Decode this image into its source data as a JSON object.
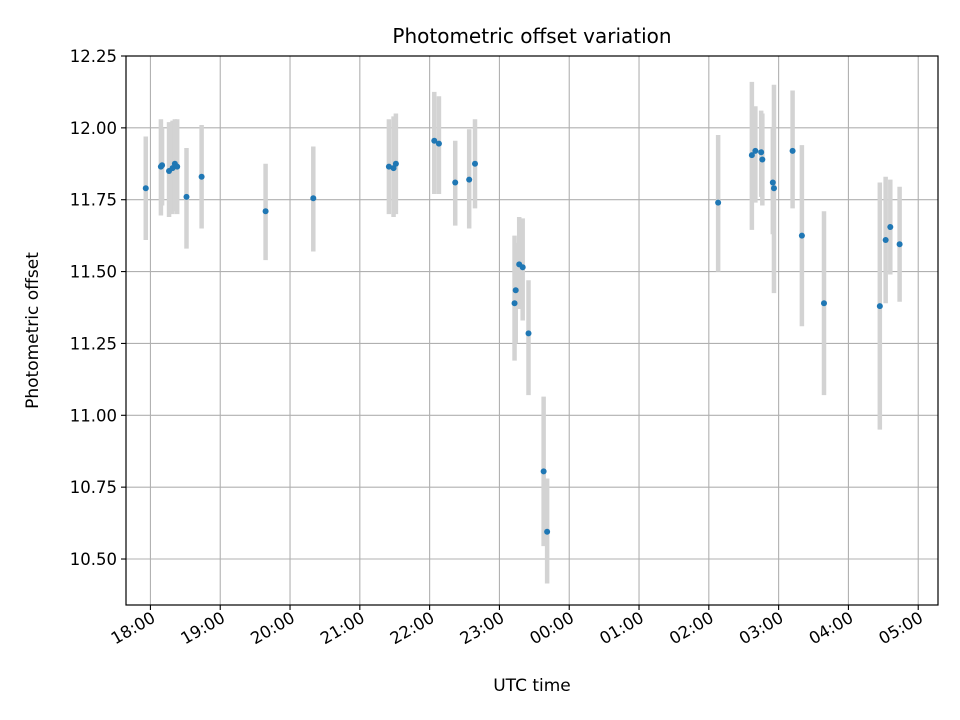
{
  "chart_data": {
    "type": "scatter",
    "title": "Photometric offset variation",
    "xlabel": "UTC time",
    "ylabel": "Photometric offset",
    "x_unit": "UTC clock time",
    "xlim": [
      "17:39",
      "05:17"
    ],
    "ylim": [
      10.34,
      12.25
    ],
    "xticks": [
      "18:00",
      "19:00",
      "20:00",
      "21:00",
      "22:00",
      "23:00",
      "00:00",
      "01:00",
      "02:00",
      "03:00",
      "04:00",
      "05:00"
    ],
    "yticks": [
      "10.50",
      "10.75",
      "11.00",
      "11.25",
      "11.50",
      "11.75",
      "12.00",
      "12.25"
    ],
    "grid": true,
    "legend": "none",
    "colors": {
      "point": "#1f77b4",
      "errorbar": "#d3d3d3",
      "grid": "#b0b0b0"
    },
    "series": [
      {
        "points": [
          {
            "x": "17:56",
            "y": 11.79,
            "y_low": 11.61,
            "y_high": 11.97
          },
          {
            "x": "18:09",
            "y": 11.865,
            "y_low": 11.695,
            "y_high": 12.03
          },
          {
            "x": "18:10",
            "y": 11.87,
            "y_low": 11.73,
            "y_high": 12.0
          },
          {
            "x": "18:16",
            "y": 11.85,
            "y_low": 11.69,
            "y_high": 12.02
          },
          {
            "x": "18:19",
            "y": 11.86,
            "y_low": 11.7,
            "y_high": 12.025
          },
          {
            "x": "18:21",
            "y": 11.875,
            "y_low": 11.71,
            "y_high": 12.03
          },
          {
            "x": "18:23",
            "y": 11.865,
            "y_low": 11.7,
            "y_high": 12.03
          },
          {
            "x": "18:31",
            "y": 11.76,
            "y_low": 11.58,
            "y_high": 11.93
          },
          {
            "x": "18:44",
            "y": 11.83,
            "y_low": 11.65,
            "y_high": 12.01
          },
          {
            "x": "19:39",
            "y": 11.71,
            "y_low": 11.54,
            "y_high": 11.875
          },
          {
            "x": "20:20",
            "y": 11.755,
            "y_low": 11.57,
            "y_high": 11.935
          },
          {
            "x": "21:25",
            "y": 11.865,
            "y_low": 11.7,
            "y_high": 12.03
          },
          {
            "x": "21:29",
            "y": 11.86,
            "y_low": 11.69,
            "y_high": 12.04
          },
          {
            "x": "21:31",
            "y": 11.875,
            "y_low": 11.7,
            "y_high": 12.05
          },
          {
            "x": "22:04",
            "y": 11.955,
            "y_low": 11.77,
            "y_high": 12.125
          },
          {
            "x": "22:08",
            "y": 11.945,
            "y_low": 11.77,
            "y_high": 12.11
          },
          {
            "x": "22:22",
            "y": 11.81,
            "y_low": 11.66,
            "y_high": 11.955
          },
          {
            "x": "22:34",
            "y": 11.82,
            "y_low": 11.65,
            "y_high": 11.995
          },
          {
            "x": "22:39",
            "y": 11.875,
            "y_low": 11.72,
            "y_high": 12.03
          },
          {
            "x": "23:13",
            "y": 11.39,
            "y_low": 11.19,
            "y_high": 11.625
          },
          {
            "x": "23:14",
            "y": 11.435,
            "y_low": 11.25,
            "y_high": 11.6
          },
          {
            "x": "23:17",
            "y": 11.525,
            "y_low": 11.37,
            "y_high": 11.69
          },
          {
            "x": "23:20",
            "y": 11.515,
            "y_low": 11.33,
            "y_high": 11.685
          },
          {
            "x": "23:25",
            "y": 11.285,
            "y_low": 11.07,
            "y_high": 11.47
          },
          {
            "x": "23:38",
            "y": 10.805,
            "y_low": 10.545,
            "y_high": 11.065
          },
          {
            "x": "23:41",
            "y": 10.595,
            "y_low": 10.415,
            "y_high": 10.78
          },
          {
            "x": "02:08",
            "y": 11.74,
            "y_low": 11.5,
            "y_high": 11.975
          },
          {
            "x": "02:37",
            "y": 11.905,
            "y_low": 11.645,
            "y_high": 12.16
          },
          {
            "x": "02:40",
            "y": 11.92,
            "y_low": 11.74,
            "y_high": 12.075
          },
          {
            "x": "02:45",
            "y": 11.915,
            "y_low": 11.76,
            "y_high": 12.06
          },
          {
            "x": "02:46",
            "y": 11.89,
            "y_low": 11.73,
            "y_high": 12.05
          },
          {
            "x": "02:55",
            "y": 11.81,
            "y_low": 11.63,
            "y_high": 12.0
          },
          {
            "x": "02:56",
            "y": 11.79,
            "y_low": 11.425,
            "y_high": 12.15
          },
          {
            "x": "03:12",
            "y": 11.92,
            "y_low": 11.72,
            "y_high": 12.13
          },
          {
            "x": "03:20",
            "y": 11.625,
            "y_low": 11.31,
            "y_high": 11.94
          },
          {
            "x": "03:39",
            "y": 11.39,
            "y_low": 11.07,
            "y_high": 11.71
          },
          {
            "x": "04:27",
            "y": 11.38,
            "y_low": 10.95,
            "y_high": 11.81
          },
          {
            "x": "04:32",
            "y": 11.61,
            "y_low": 11.39,
            "y_high": 11.83
          },
          {
            "x": "04:36",
            "y": 11.655,
            "y_low": 11.49,
            "y_high": 11.82
          },
          {
            "x": "04:44",
            "y": 11.595,
            "y_low": 11.395,
            "y_high": 11.795
          }
        ]
      }
    ]
  }
}
